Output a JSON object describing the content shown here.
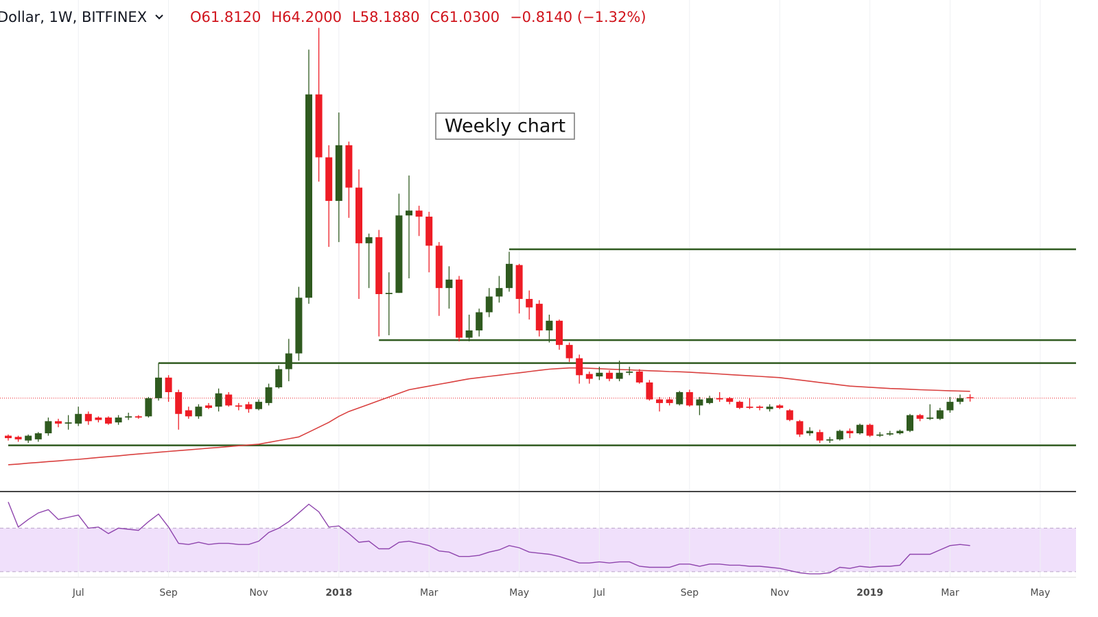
{
  "chart_data": {
    "type": "candlestick",
    "header": {
      "symbol": "Dollar, 1W, BITFINEX",
      "quote": [
        "O61.8120",
        "H64.2000",
        "L58.1880",
        "C61.0300",
        "−0.8140 (−1.32%)"
      ]
    },
    "annotation": "Weekly chart",
    "categories": [
      null,
      null,
      null,
      null,
      null,
      null,
      null,
      "Jul",
      null,
      null,
      null,
      null,
      null,
      null,
      null,
      null,
      "Sep",
      null,
      null,
      null,
      null,
      null,
      null,
      null,
      null,
      "Nov",
      null,
      null,
      null,
      null,
      null,
      null,
      null,
      "2018",
      null,
      null,
      null,
      null,
      null,
      null,
      null,
      null,
      "Mar",
      null,
      null,
      null,
      null,
      null,
      null,
      null,
      null,
      "May",
      null,
      null,
      null,
      null,
      null,
      null,
      null,
      "Jul",
      null,
      null,
      null,
      null,
      null,
      null,
      null,
      null,
      "Sep",
      null,
      null,
      null,
      null,
      null,
      null,
      null,
      null,
      "Nov",
      null,
      null,
      null,
      null,
      null,
      null,
      null,
      null,
      "2019",
      null,
      null,
      null,
      null,
      null,
      null,
      null,
      "Mar",
      null,
      null,
      null,
      null,
      null,
      null,
      null,
      null,
      "May"
    ],
    "open": [
      30,
      29,
      26,
      27,
      32,
      42,
      40,
      40,
      48,
      45,
      45,
      41,
      45,
      46,
      46,
      61,
      78,
      66,
      51,
      46,
      55,
      54,
      64,
      55,
      56,
      52,
      57,
      70,
      85,
      98,
      144,
      312,
      260,
      224,
      270,
      235,
      189,
      194,
      147,
      148,
      212,
      216,
      211,
      187,
      152,
      159,
      111,
      117,
      132,
      145,
      152,
      171,
      143,
      139,
      117,
      125,
      105,
      94,
      81,
      79,
      82,
      77,
      82,
      83,
      74,
      60,
      60,
      56,
      66,
      55,
      57,
      61,
      61,
      58,
      54,
      54,
      52,
      55,
      51,
      42,
      32,
      33,
      26,
      27,
      34,
      32,
      39,
      30,
      31,
      32,
      34,
      47,
      44,
      44,
      51,
      58,
      61.812,
      null,
      null,
      null,
      null,
      null,
      null,
      null
    ],
    "high": [
      31,
      30,
      31,
      33,
      45,
      44,
      47,
      54,
      50,
      46,
      46,
      47,
      49,
      47,
      62,
      90,
      80,
      68,
      54,
      56,
      57,
      69,
      66,
      57,
      58,
      60,
      73,
      88,
      110,
      153,
      349,
      367,
      270,
      297,
      273,
      250,
      197,
      200,
      165,
      230,
      245,
      220,
      215,
      190,
      170,
      162,
      130,
      135,
      152,
      162,
      182,
      172,
      150,
      142,
      130,
      126,
      107,
      97,
      83,
      87,
      84,
      92,
      87,
      85,
      76,
      62,
      62,
      67,
      68,
      62,
      63,
      66,
      62,
      59,
      61,
      55,
      56,
      56,
      52,
      43,
      37,
      35,
      29,
      35,
      36,
      40,
      40,
      33,
      34,
      35,
      48,
      48,
      56,
      53,
      62,
      64,
      64.2,
      null,
      null,
      null,
      null,
      null,
      null,
      null
    ],
    "low": [
      26,
      25,
      24,
      25,
      30,
      37,
      35,
      38,
      39,
      41,
      39,
      39,
      43,
      44,
      45,
      59,
      58,
      35,
      44,
      44,
      52,
      50,
      54,
      51,
      49,
      51,
      55,
      69,
      75,
      92,
      139,
      240,
      186,
      190,
      210,
      143,
      152,
      112,
      113,
      148,
      160,
      195,
      165,
      129,
      135,
      108,
      108,
      112,
      128,
      140,
      149,
      131,
      126,
      112,
      107,
      101,
      91,
      73,
      73,
      76,
      75,
      75,
      80,
      73,
      59,
      50,
      55,
      55,
      54,
      47,
      56,
      58,
      56,
      52,
      52,
      51,
      50,
      52,
      42,
      29,
      30,
      24,
      24,
      26,
      28,
      31,
      29,
      29,
      30,
      31,
      33,
      42,
      43,
      43,
      49,
      56,
      58.188,
      null,
      null,
      null,
      null,
      null,
      null,
      null
    ],
    "close": [
      28,
      27,
      30,
      32,
      42,
      40,
      41,
      48,
      42,
      43,
      40,
      45,
      46,
      45,
      61,
      78,
      66,
      48,
      46,
      54,
      53,
      65,
      55,
      54,
      52,
      58,
      70,
      85,
      98,
      144,
      312,
      260,
      224,
      270,
      235,
      189,
      194,
      147,
      148,
      212,
      216,
      211,
      187,
      152,
      159,
      111,
      117,
      132,
      145,
      152,
      172,
      143,
      136,
      117,
      125,
      105,
      94,
      80,
      77,
      82,
      77,
      82,
      83,
      74,
      60,
      57,
      57,
      66,
      55,
      60,
      61,
      60,
      58,
      53,
      53,
      53,
      54,
      53,
      43,
      31,
      34,
      26,
      27,
      34,
      32,
      39,
      30,
      31,
      32,
      34,
      47,
      44,
      45,
      51,
      58,
      61,
      61.03,
      null,
      null,
      null,
      null,
      null,
      null,
      null
    ],
    "up_color": "#2f5a1f",
    "down_color": "#ee1c25",
    "moving_average": {
      "color": "#d9403f",
      "values": [
        6,
        6.6,
        7.3,
        7.9,
        8.6,
        9.2,
        9.9,
        10.5,
        11.2,
        12,
        12.7,
        13.4,
        14.2,
        14.9,
        15.6,
        16.3,
        17,
        17.7,
        18.3,
        19,
        19.7,
        20.3,
        21,
        21.7,
        22.3,
        23,
        24.5,
        26,
        27.5,
        29,
        33,
        37,
        41,
        46,
        50,
        53,
        56,
        59,
        62,
        65,
        68,
        69.5,
        71,
        72.5,
        74,
        75.5,
        77,
        78,
        79,
        80,
        81,
        82,
        83,
        84,
        85,
        85.5,
        86,
        86,
        85.7,
        85.4,
        85,
        84.7,
        84.4,
        84,
        83.7,
        83.4,
        83,
        82.8,
        82.5,
        82,
        81.5,
        81,
        80.5,
        80,
        79.5,
        79,
        78.5,
        78,
        77,
        76,
        75,
        74,
        73,
        72,
        71,
        70.5,
        70,
        69.5,
        69,
        68.7,
        68.4,
        68,
        67.7,
        67.4,
        67.1,
        66.9,
        66.7,
        null,
        null,
        null,
        null,
        null,
        null,
        null
      ]
    },
    "levels": [
      {
        "value": 184,
        "start": 50
      },
      {
        "value": 109,
        "start": 37
      },
      {
        "value": 90,
        "start": 15
      },
      {
        "value": 22,
        "start": 0
      }
    ],
    "level_color": "#2f5a1f",
    "ylim": [
      -15,
      390
    ],
    "rsi": {
      "color": "#8e44ad",
      "band": [
        30,
        70
      ],
      "band_color": "#f0e0fb",
      "ylim": [
        23,
        103
      ],
      "values": [
        94,
        71,
        78,
        84,
        87,
        78,
        80,
        82,
        70,
        71,
        65,
        70,
        69,
        68,
        76,
        83,
        71,
        56,
        55,
        57,
        55,
        56,
        56,
        55,
        55,
        58,
        66,
        70,
        76,
        84,
        92,
        85,
        71,
        72,
        65,
        57,
        58,
        51,
        51,
        57,
        58,
        56,
        54,
        49,
        48,
        44,
        44,
        45,
        48,
        50,
        54,
        52,
        48,
        47,
        46,
        44,
        41,
        38,
        38,
        39,
        38,
        39,
        39,
        35,
        34,
        34,
        34,
        37,
        37,
        35,
        37,
        37,
        36,
        36,
        35,
        35,
        34,
        33,
        31,
        29,
        28,
        28,
        29,
        34,
        33,
        35,
        34,
        35,
        35,
        36,
        46,
        46,
        46,
        50,
        54,
        55,
        54,
        null,
        null,
        null,
        null,
        null,
        null,
        null
      ]
    }
  }
}
